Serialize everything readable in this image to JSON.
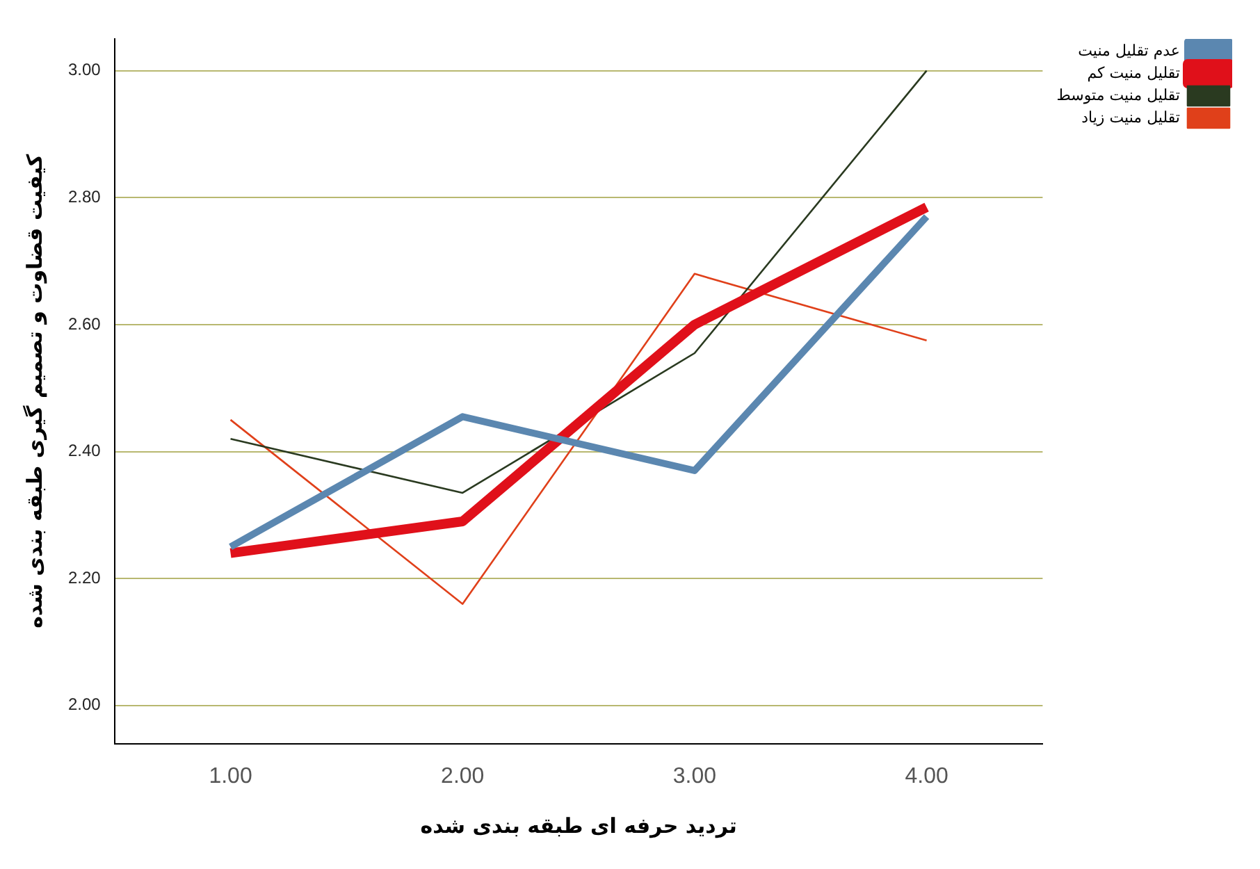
{
  "chart_data": {
    "type": "line",
    "xlabel": "تردید حرفه ای طبقه بندی شده",
    "ylabel": "کیفیت قضاوت و تصمیم گیری طبقه بندی شده",
    "categories": [
      "1.00",
      "2.00",
      "3.00",
      "4.00"
    ],
    "series": [
      {
        "name": "عدم تقلیل منیت",
        "color": "#5b87b0",
        "values": [
          2.25,
          2.455,
          2.37,
          2.77
        ]
      },
      {
        "name": "تقلیل منیت کم",
        "color": "#e0101a",
        "values": [
          2.24,
          2.29,
          2.6,
          2.785
        ]
      },
      {
        "name": "تقلیل منیت متوسط",
        "color": "#2a3a20",
        "values": [
          2.42,
          2.335,
          2.555,
          3.0
        ]
      },
      {
        "name": "تقلیل منیت زیاد",
        "color": "#e0401a",
        "values": [
          2.45,
          2.16,
          2.68,
          2.575
        ]
      }
    ],
    "ylim": [
      1.94,
      3.05
    ],
    "yticks": [
      {
        "value": 2,
        "label": "2.00"
      },
      {
        "value": 2.2,
        "label": "2.20"
      },
      {
        "value": 2.4,
        "label": "2.40"
      },
      {
        "value": 2.6,
        "label": "2.60"
      },
      {
        "value": 2.8,
        "label": "2.80"
      },
      {
        "value": 3,
        "label": "3.00"
      }
    ],
    "grid": "y",
    "legend": "top right",
    "marker": "none",
    "line_style": "solid"
  }
}
